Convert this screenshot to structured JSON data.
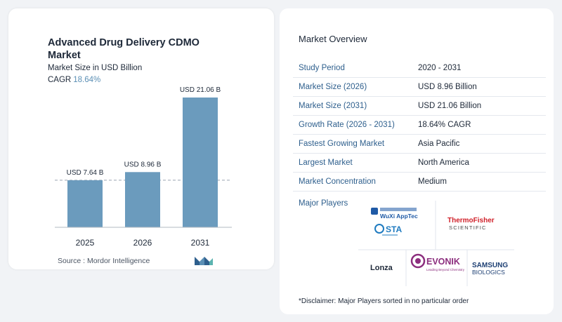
{
  "title": "Advanced Drug Delivery CDMO Market",
  "subtitle": "Market Size in USD Billion",
  "cagr_label": "CAGR",
  "cagr_value": "18.64%",
  "source": "Source :  Mordor Intelligence",
  "chart_data": {
    "type": "bar",
    "categories": [
      "2025",
      "2026",
      "2031"
    ],
    "values": [
      7.64,
      8.96,
      21.06
    ],
    "data_labels": [
      "USD 7.64 B",
      "USD 8.96 B",
      "USD 21.06 B"
    ],
    "title": "Advanced Drug Delivery CDMO Market",
    "ylabel": "Market Size in USD Billion",
    "xlabel": "",
    "ylim": [
      0,
      21.06
    ],
    "reference_line": 7.64,
    "bar_color": "#6b9bbd",
    "grid": false
  },
  "overview": {
    "title": "Market Overview",
    "rows": [
      {
        "key": "Study Period",
        "value": "2020 - 2031"
      },
      {
        "key": "Market Size (2026)",
        "value": "USD 8.96 Billion"
      },
      {
        "key": "Market Size (2031)",
        "value": "USD 21.06 Billion"
      },
      {
        "key": "Growth Rate (2026 - 2031)",
        "value": "18.64% CAGR"
      },
      {
        "key": "Fastest Growing Market",
        "value": "Asia Pacific"
      },
      {
        "key": "Largest Market",
        "value": "North America"
      },
      {
        "key": "Market Concentration",
        "value": "Medium"
      }
    ]
  },
  "players": {
    "title": "Major Players",
    "logos": [
      "WuXi AppTec",
      "STA",
      "Thermo Fisher SCIENTIFIC",
      "Lonza",
      "EVONIK",
      "Leading Beyond Chemistry",
      "SAMSUNG",
      "BIOLOGICS"
    ]
  },
  "disclaimer": "*Disclaimer: Major Players sorted in no particular order",
  "colors": {
    "accent": "#2e5f8d",
    "bar": "#6b9bbd",
    "evonik": "#8c2e7e",
    "thermo": "#d0212a"
  }
}
